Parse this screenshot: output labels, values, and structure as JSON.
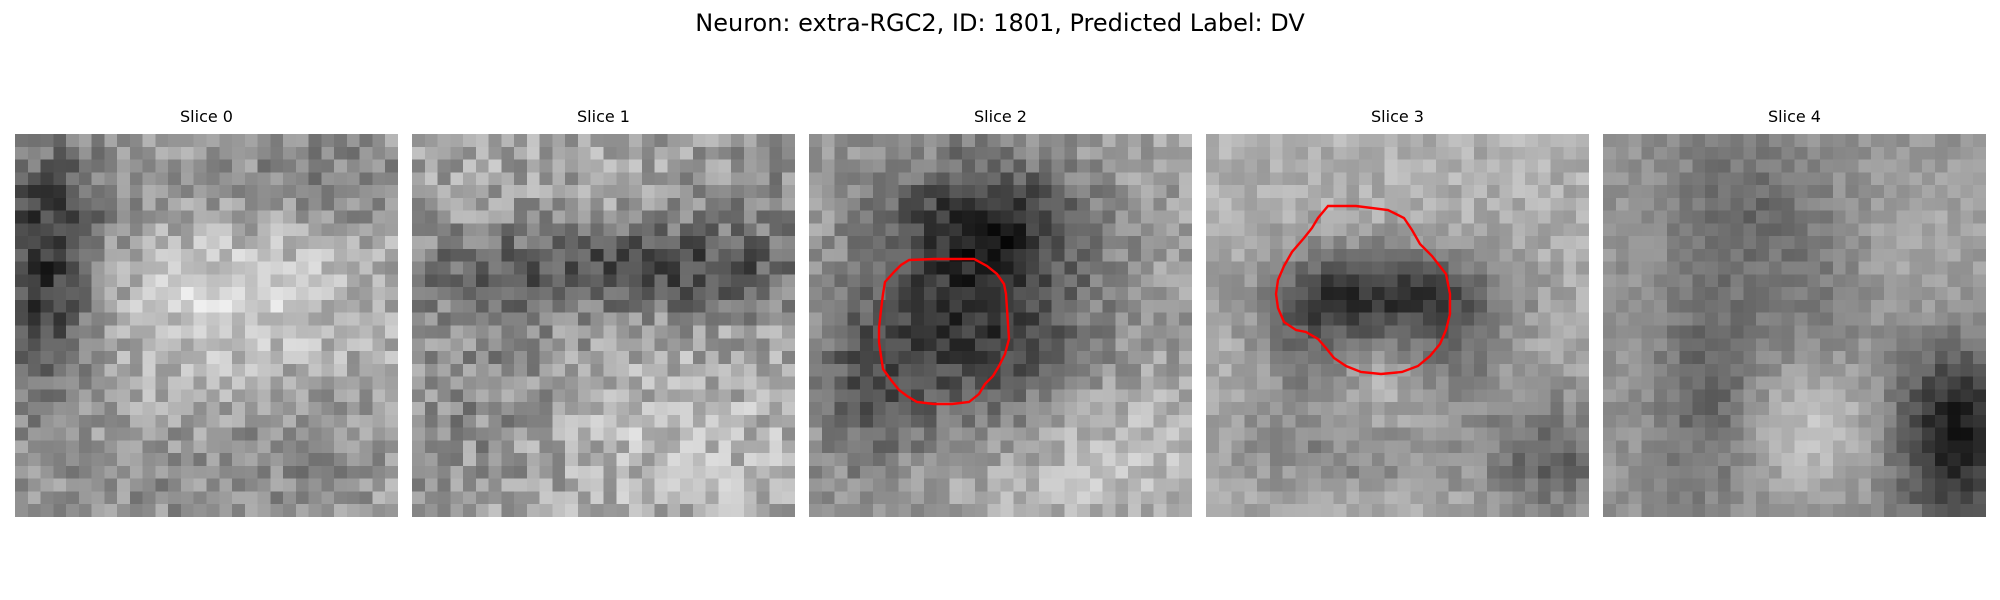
{
  "figure": {
    "title": "Neuron: extra-RGC2, ID: 1801, Predicted Label: DV"
  },
  "panels": [
    {
      "title": "Slice 0",
      "has_contour": false
    },
    {
      "title": "Slice 1",
      "has_contour": false
    },
    {
      "title": "Slice 2",
      "has_contour": true
    },
    {
      "title": "Slice 3",
      "has_contour": true
    },
    {
      "title": "Slice 4",
      "has_contour": false
    }
  ],
  "colors": {
    "contour": "#ff0000",
    "background": "#ffffff",
    "colormap": "grayscale"
  }
}
